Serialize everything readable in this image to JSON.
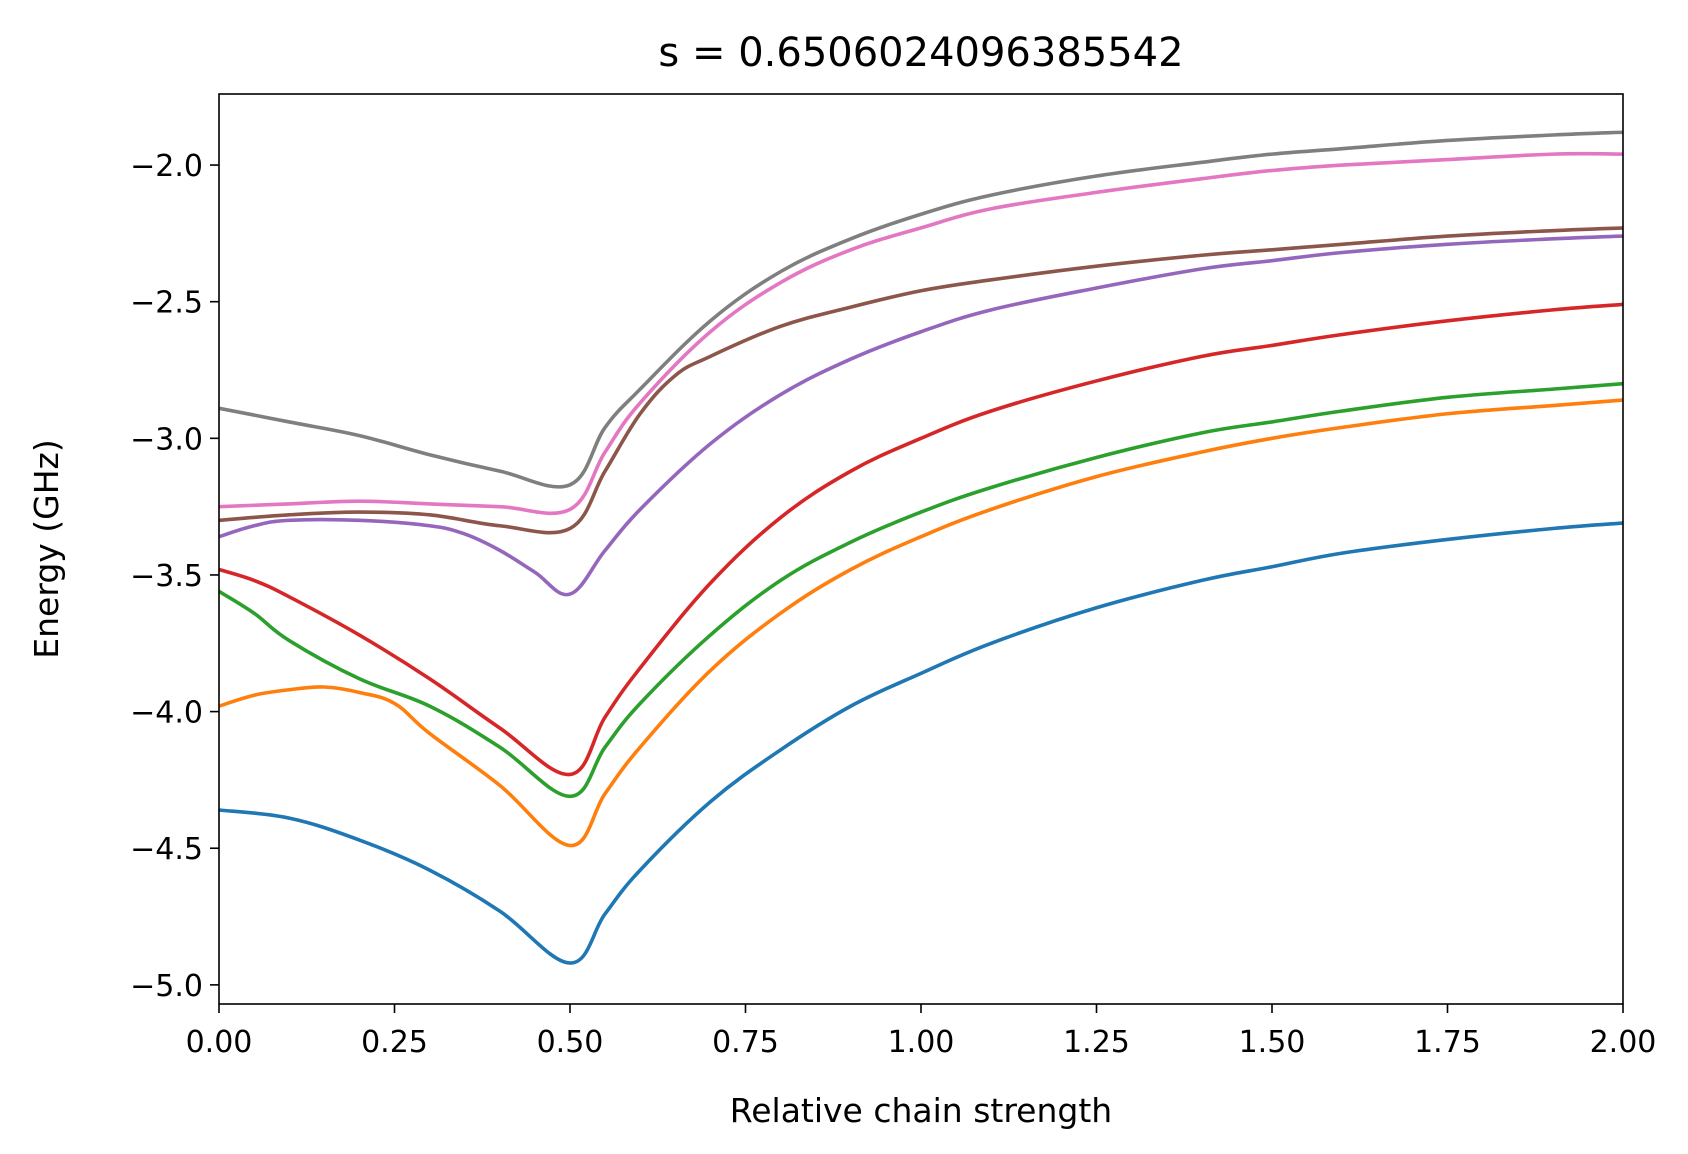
{
  "chart_data": {
    "type": "line",
    "title": "s = 0.6506024096385542",
    "xlabel": "Relative chain strength",
    "ylabel": "Energy (GHz)",
    "xlim": [
      0,
      2
    ],
    "ylim": [
      -5.07,
      -1.74
    ],
    "xticks": [
      0,
      0.25,
      0.5,
      0.75,
      1.0,
      1.25,
      1.5,
      1.75,
      2.0
    ],
    "xtick_labels": [
      "0.00",
      "0.25",
      "0.50",
      "0.75",
      "1.00",
      "1.25",
      "1.50",
      "1.75",
      "2.00"
    ],
    "yticks": [
      -5.0,
      -4.5,
      -4.0,
      -3.5,
      -3.0,
      -2.5,
      -2.0
    ],
    "ytick_labels": [
      "−5.0",
      "−4.5",
      "−4.0",
      "−3.5",
      "−3.0",
      "−2.5",
      "−2.0"
    ],
    "grid": false,
    "legend": "none",
    "series": [
      {
        "color": "#1f77b4",
        "points": [
          [
            0,
            -4.36
          ],
          [
            0.1,
            -4.39
          ],
          [
            0.2,
            -4.47
          ],
          [
            0.3,
            -4.58
          ],
          [
            0.4,
            -4.73
          ],
          [
            0.5,
            -4.92
          ],
          [
            0.55,
            -4.74
          ],
          [
            0.6,
            -4.58
          ],
          [
            0.7,
            -4.33
          ],
          [
            0.8,
            -4.14
          ],
          [
            0.9,
            -3.98
          ],
          [
            1.0,
            -3.86
          ],
          [
            1.1,
            -3.75
          ],
          [
            1.25,
            -3.62
          ],
          [
            1.4,
            -3.52
          ],
          [
            1.5,
            -3.47
          ],
          [
            1.6,
            -3.42
          ],
          [
            1.75,
            -3.37
          ],
          [
            1.9,
            -3.33
          ],
          [
            2.0,
            -3.31
          ]
        ]
      },
      {
        "color": "#ff7f0e",
        "points": [
          [
            0,
            -3.98
          ],
          [
            0.05,
            -3.94
          ],
          [
            0.1,
            -3.92
          ],
          [
            0.15,
            -3.91
          ],
          [
            0.2,
            -3.93
          ],
          [
            0.25,
            -3.97
          ],
          [
            0.3,
            -4.08
          ],
          [
            0.4,
            -4.27
          ],
          [
            0.5,
            -4.49
          ],
          [
            0.55,
            -4.3
          ],
          [
            0.6,
            -4.13
          ],
          [
            0.7,
            -3.85
          ],
          [
            0.8,
            -3.64
          ],
          [
            0.9,
            -3.48
          ],
          [
            1.0,
            -3.36
          ],
          [
            1.1,
            -3.26
          ],
          [
            1.25,
            -3.14
          ],
          [
            1.4,
            -3.05
          ],
          [
            1.5,
            -3.0
          ],
          [
            1.6,
            -2.96
          ],
          [
            1.75,
            -2.91
          ],
          [
            1.9,
            -2.88
          ],
          [
            2.0,
            -2.86
          ]
        ]
      },
      {
        "color": "#2ca02c",
        "points": [
          [
            0,
            -3.56
          ],
          [
            0.05,
            -3.64
          ],
          [
            0.1,
            -3.74
          ],
          [
            0.2,
            -3.88
          ],
          [
            0.3,
            -3.98
          ],
          [
            0.4,
            -4.13
          ],
          [
            0.5,
            -4.31
          ],
          [
            0.55,
            -4.13
          ],
          [
            0.6,
            -3.97
          ],
          [
            0.7,
            -3.72
          ],
          [
            0.8,
            -3.52
          ],
          [
            0.9,
            -3.38
          ],
          [
            1.0,
            -3.27
          ],
          [
            1.1,
            -3.18
          ],
          [
            1.25,
            -3.07
          ],
          [
            1.4,
            -2.98
          ],
          [
            1.5,
            -2.94
          ],
          [
            1.6,
            -2.9
          ],
          [
            1.75,
            -2.85
          ],
          [
            1.9,
            -2.82
          ],
          [
            2.0,
            -2.8
          ]
        ]
      },
      {
        "color": "#d62728",
        "points": [
          [
            0,
            -3.48
          ],
          [
            0.05,
            -3.52
          ],
          [
            0.1,
            -3.58
          ],
          [
            0.2,
            -3.72
          ],
          [
            0.3,
            -3.88
          ],
          [
            0.4,
            -4.06
          ],
          [
            0.5,
            -4.23
          ],
          [
            0.55,
            -4.02
          ],
          [
            0.6,
            -3.84
          ],
          [
            0.7,
            -3.53
          ],
          [
            0.8,
            -3.29
          ],
          [
            0.9,
            -3.12
          ],
          [
            1.0,
            -3.0
          ],
          [
            1.1,
            -2.9
          ],
          [
            1.25,
            -2.79
          ],
          [
            1.4,
            -2.7
          ],
          [
            1.5,
            -2.66
          ],
          [
            1.6,
            -2.62
          ],
          [
            1.75,
            -2.57
          ],
          [
            1.9,
            -2.53
          ],
          [
            2.0,
            -2.51
          ]
        ]
      },
      {
        "color": "#9467bd",
        "points": [
          [
            0,
            -3.36
          ],
          [
            0.05,
            -3.32
          ],
          [
            0.1,
            -3.3
          ],
          [
            0.2,
            -3.3
          ],
          [
            0.3,
            -3.32
          ],
          [
            0.35,
            -3.35
          ],
          [
            0.4,
            -3.41
          ],
          [
            0.45,
            -3.49
          ],
          [
            0.5,
            -3.57
          ],
          [
            0.55,
            -3.41
          ],
          [
            0.6,
            -3.26
          ],
          [
            0.7,
            -3.02
          ],
          [
            0.8,
            -2.84
          ],
          [
            0.9,
            -2.71
          ],
          [
            1.0,
            -2.61
          ],
          [
            1.1,
            -2.53
          ],
          [
            1.25,
            -2.45
          ],
          [
            1.4,
            -2.38
          ],
          [
            1.5,
            -2.35
          ],
          [
            1.6,
            -2.32
          ],
          [
            1.75,
            -2.29
          ],
          [
            1.9,
            -2.27
          ],
          [
            2.0,
            -2.26
          ]
        ]
      },
      {
        "color": "#8c564b",
        "points": [
          [
            0,
            -3.3
          ],
          [
            0.1,
            -3.28
          ],
          [
            0.2,
            -3.27
          ],
          [
            0.3,
            -3.28
          ],
          [
            0.4,
            -3.32
          ],
          [
            0.5,
            -3.33
          ],
          [
            0.55,
            -3.12
          ],
          [
            0.6,
            -2.91
          ],
          [
            0.65,
            -2.77
          ],
          [
            0.7,
            -2.7
          ],
          [
            0.8,
            -2.59
          ],
          [
            0.9,
            -2.52
          ],
          [
            1.0,
            -2.46
          ],
          [
            1.1,
            -2.42
          ],
          [
            1.25,
            -2.37
          ],
          [
            1.4,
            -2.33
          ],
          [
            1.5,
            -2.31
          ],
          [
            1.6,
            -2.29
          ],
          [
            1.75,
            -2.26
          ],
          [
            1.9,
            -2.24
          ],
          [
            2.0,
            -2.23
          ]
        ]
      },
      {
        "color": "#e377c2",
        "points": [
          [
            0,
            -3.25
          ],
          [
            0.1,
            -3.24
          ],
          [
            0.2,
            -3.23
          ],
          [
            0.3,
            -3.24
          ],
          [
            0.4,
            -3.25
          ],
          [
            0.5,
            -3.26
          ],
          [
            0.55,
            -3.05
          ],
          [
            0.6,
            -2.87
          ],
          [
            0.7,
            -2.61
          ],
          [
            0.8,
            -2.43
          ],
          [
            0.9,
            -2.31
          ],
          [
            1.0,
            -2.23
          ],
          [
            1.1,
            -2.16
          ],
          [
            1.25,
            -2.1
          ],
          [
            1.4,
            -2.05
          ],
          [
            1.5,
            -2.02
          ],
          [
            1.6,
            -2.0
          ],
          [
            1.75,
            -1.98
          ],
          [
            1.9,
            -1.96
          ],
          [
            2.0,
            -1.96
          ]
        ]
      },
      {
        "color": "#7f7f7f",
        "points": [
          [
            0,
            -2.89
          ],
          [
            0.1,
            -2.94
          ],
          [
            0.2,
            -2.99
          ],
          [
            0.3,
            -3.06
          ],
          [
            0.4,
            -3.12
          ],
          [
            0.5,
            -3.17
          ],
          [
            0.55,
            -2.96
          ],
          [
            0.6,
            -2.82
          ],
          [
            0.7,
            -2.57
          ],
          [
            0.8,
            -2.39
          ],
          [
            0.9,
            -2.27
          ],
          [
            1.0,
            -2.18
          ],
          [
            1.1,
            -2.11
          ],
          [
            1.25,
            -2.04
          ],
          [
            1.4,
            -1.99
          ],
          [
            1.5,
            -1.96
          ],
          [
            1.6,
            -1.94
          ],
          [
            1.75,
            -1.91
          ],
          [
            1.9,
            -1.89
          ],
          [
            2.0,
            -1.88
          ]
        ]
      }
    ]
  }
}
